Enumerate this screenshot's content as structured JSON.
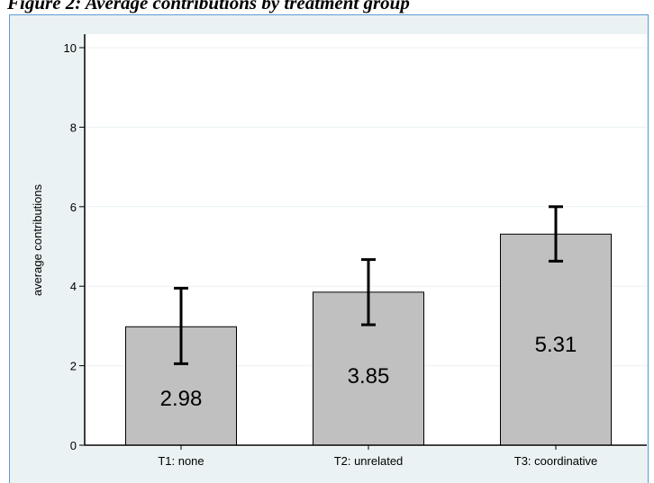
{
  "caption": "Figure 2: Average contributions by treatment group",
  "chart_data": {
    "type": "bar",
    "categories": [
      "T1: none",
      "T2: unrelated",
      "T3: coordinative"
    ],
    "values": [
      2.98,
      3.85,
      5.31
    ],
    "data_labels": [
      "2.98",
      "3.85",
      "5.31"
    ],
    "error_low": [
      2.05,
      3.03,
      4.63
    ],
    "error_high": [
      3.95,
      4.67,
      6.0
    ],
    "ylabel": "average contributions",
    "xlabel": "",
    "ylim": [
      0,
      10.2
    ],
    "yticks": [
      0,
      2,
      4,
      6,
      8,
      10
    ],
    "ytick_labels": [
      "0",
      "2",
      "4",
      "6",
      "8",
      "10"
    ],
    "grid": true,
    "colors": {
      "bar_fill": "#c0c0c0",
      "bar_stroke": "#000000",
      "frame_background": "#eaf2f3",
      "frame_border": "#5b9bd5",
      "plot_background": "#ffffff",
      "gridline": "#eaf2f3"
    }
  }
}
